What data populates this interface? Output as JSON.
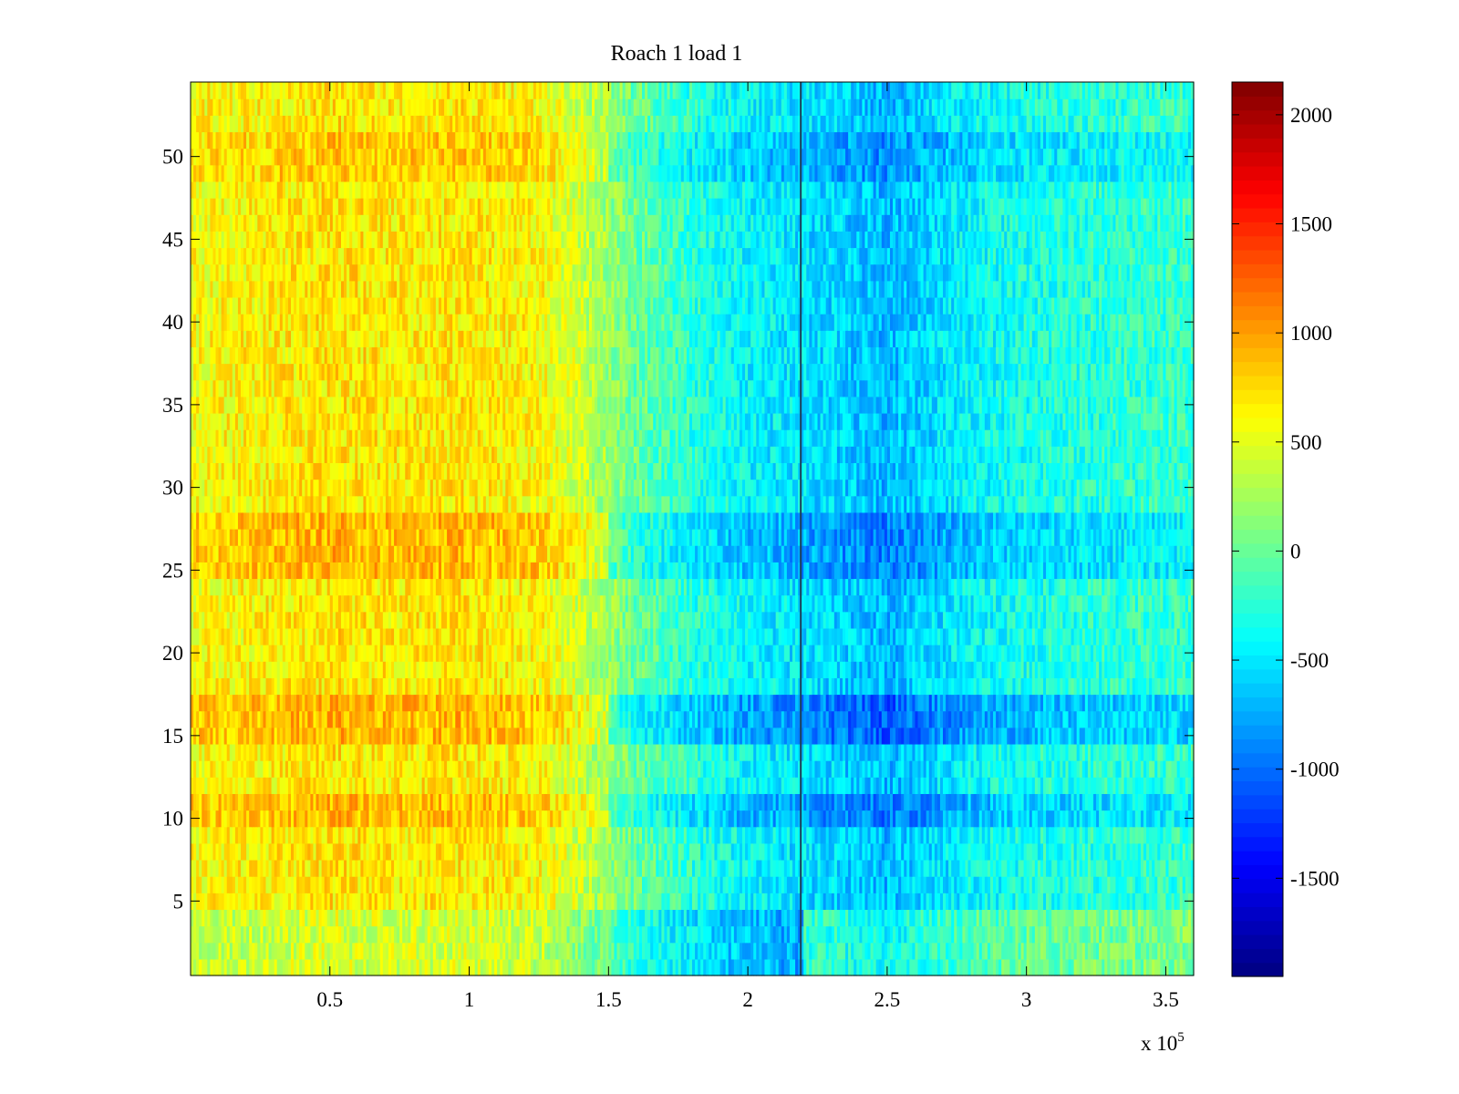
{
  "chart_data": {
    "type": "heatmap",
    "title": "Roach 1 load 1",
    "xlabel": "",
    "ylabel": "",
    "x_exponent_label": "x 10",
    "x_exponent_power": "5",
    "xlim": [
      0,
      3.6
    ],
    "ylim": [
      0.5,
      54.5
    ],
    "x_ticks": [
      0.5,
      1,
      1.5,
      2,
      2.5,
      3,
      3.5
    ],
    "x_tick_labels": [
      "0.5",
      "1",
      "1.5",
      "2",
      "2.5",
      "3",
      "3.5"
    ],
    "y_ticks": [
      5,
      10,
      15,
      20,
      25,
      30,
      35,
      40,
      45,
      50
    ],
    "y_tick_labels": [
      "5",
      "10",
      "15",
      "20",
      "25",
      "30",
      "35",
      "40",
      "45",
      "50"
    ],
    "rows": 54,
    "colormap": "jet",
    "colorbar": {
      "clim": [
        -1950,
        2150
      ],
      "ticks": [
        -1500,
        -1000,
        -500,
        0,
        500,
        1000,
        1500,
        2000
      ],
      "tick_labels": [
        "-1500",
        "-1000",
        "-500",
        "0",
        "500",
        "1000",
        "1500",
        "2000"
      ]
    },
    "x_profile_units_1e5": [
      0,
      0.25,
      0.5,
      0.75,
      1.0,
      1.25,
      1.4,
      1.6,
      1.8,
      2.0,
      2.2,
      2.35,
      2.5,
      2.65,
      2.8,
      3.0,
      3.3,
      3.6
    ],
    "x_profile_values": [
      600,
      650,
      720,
      680,
      700,
      620,
      400,
      0,
      -250,
      -420,
      -520,
      -600,
      -700,
      -560,
      -420,
      -320,
      -250,
      -200
    ],
    "row_offsets": {
      "rows_1_4": -250,
      "rows_10_11": 180,
      "rows_15_17": 200,
      "rows_25_28": 200,
      "rows_49_51": 120
    },
    "dark_vertical_line_x": 2.19,
    "grid": false
  }
}
